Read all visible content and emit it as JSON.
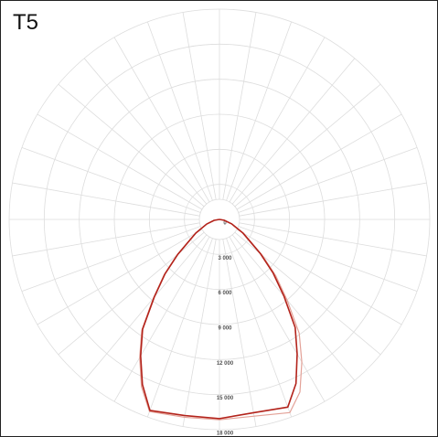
{
  "chart_data": {
    "type": "polar",
    "title": "T5",
    "x": [
      -90,
      -80,
      -70,
      -60,
      -50,
      -45,
      -40,
      -35,
      -30,
      -25,
      -20,
      -10,
      0,
      10,
      20,
      25,
      30,
      35,
      40,
      45,
      50,
      60,
      70,
      80,
      90
    ],
    "series": [
      {
        "color": "#b3231b",
        "values": [
          0,
          460,
          1160,
          2330,
          4650,
          6590,
          8680,
          11470,
          13490,
          15600,
          17400,
          17050,
          17050,
          16800,
          17100,
          15500,
          13300,
          11300,
          8600,
          6500,
          4600,
          2300,
          1100,
          400,
          0
        ]
      },
      {
        "color": "#e3a197",
        "values": [
          0,
          480,
          1200,
          2400,
          4750,
          6700,
          8800,
          11600,
          13650,
          15800,
          17500,
          17200,
          17150,
          17100,
          17600,
          16300,
          14100,
          11900,
          9000,
          6800,
          4800,
          2400,
          1150,
          420,
          0
        ]
      }
    ],
    "rlim": [
      0,
      18000
    ],
    "rticks": [
      0,
      {
        "value": 3000,
        "label": "3 000"
      },
      {
        "value": 6000,
        "label": "6 000"
      },
      {
        "value": 9000,
        "label": "9 000"
      },
      {
        "value": 12000,
        "label": "12 000"
      },
      {
        "value": 15000,
        "label": "15 000"
      },
      {
        "value": 18000,
        "label": "18 000"
      }
    ],
    "grid": true
  }
}
